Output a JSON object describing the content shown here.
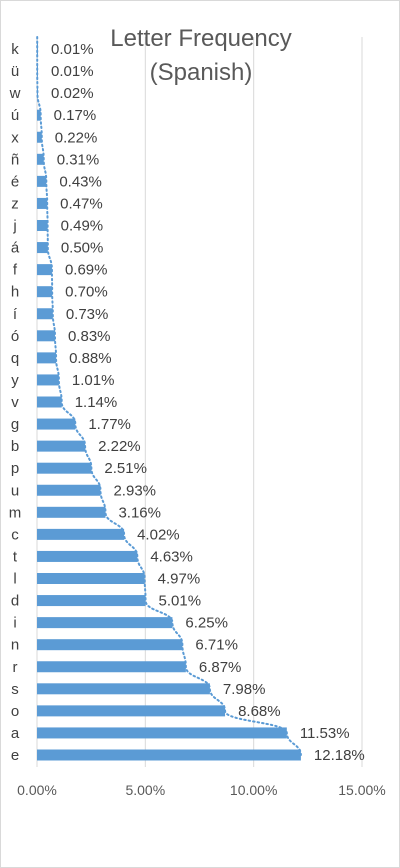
{
  "chart_data": {
    "type": "bar",
    "orientation": "horizontal",
    "title_lines": [
      "Letter Frequency",
      "(Spanish)"
    ],
    "categories": [
      "e",
      "a",
      "o",
      "s",
      "r",
      "n",
      "i",
      "d",
      "l",
      "t",
      "c",
      "m",
      "u",
      "p",
      "b",
      "g",
      "v",
      "y",
      "q",
      "ó",
      "í",
      "h",
      "f",
      "á",
      "j",
      "z",
      "é",
      "ñ",
      "x",
      "ú",
      "w",
      "ü",
      "k"
    ],
    "values": [
      12.18,
      11.53,
      8.68,
      7.98,
      6.87,
      6.71,
      6.25,
      5.01,
      4.97,
      4.63,
      4.02,
      3.16,
      2.93,
      2.51,
      2.22,
      1.77,
      1.14,
      1.01,
      0.88,
      0.83,
      0.73,
      0.7,
      0.69,
      0.5,
      0.49,
      0.47,
      0.43,
      0.31,
      0.22,
      0.17,
      0.02,
      0.01,
      0.01
    ],
    "data_labels": [
      "12.18%",
      "11.53%",
      "8.68%",
      "7.98%",
      "6.87%",
      "6.71%",
      "6.25%",
      "5.01%",
      "4.97%",
      "4.63%",
      "4.02%",
      "3.16%",
      "2.93%",
      "2.51%",
      "2.22%",
      "1.77%",
      "1.14%",
      "1.01%",
      "0.88%",
      "0.83%",
      "0.73%",
      "0.70%",
      "0.69%",
      "0.50%",
      "0.49%",
      "0.47%",
      "0.43%",
      "0.31%",
      "0.22%",
      "0.17%",
      "0.02%",
      "0.01%",
      "0.01%"
    ],
    "xlim": [
      0,
      15
    ],
    "xticks": [
      0,
      5,
      10,
      15
    ],
    "xtick_labels": [
      "0.00%",
      "5.00%",
      "10.00%",
      "15.00%"
    ],
    "xlabel": "",
    "ylabel": "",
    "grid": "vertical",
    "trendline": "dotted",
    "colors": {
      "bar": "#5b9bd5",
      "trendline": "#5b9bd5",
      "grid": "#d9d9d9",
      "text": "#404040",
      "title": "#595959"
    }
  }
}
